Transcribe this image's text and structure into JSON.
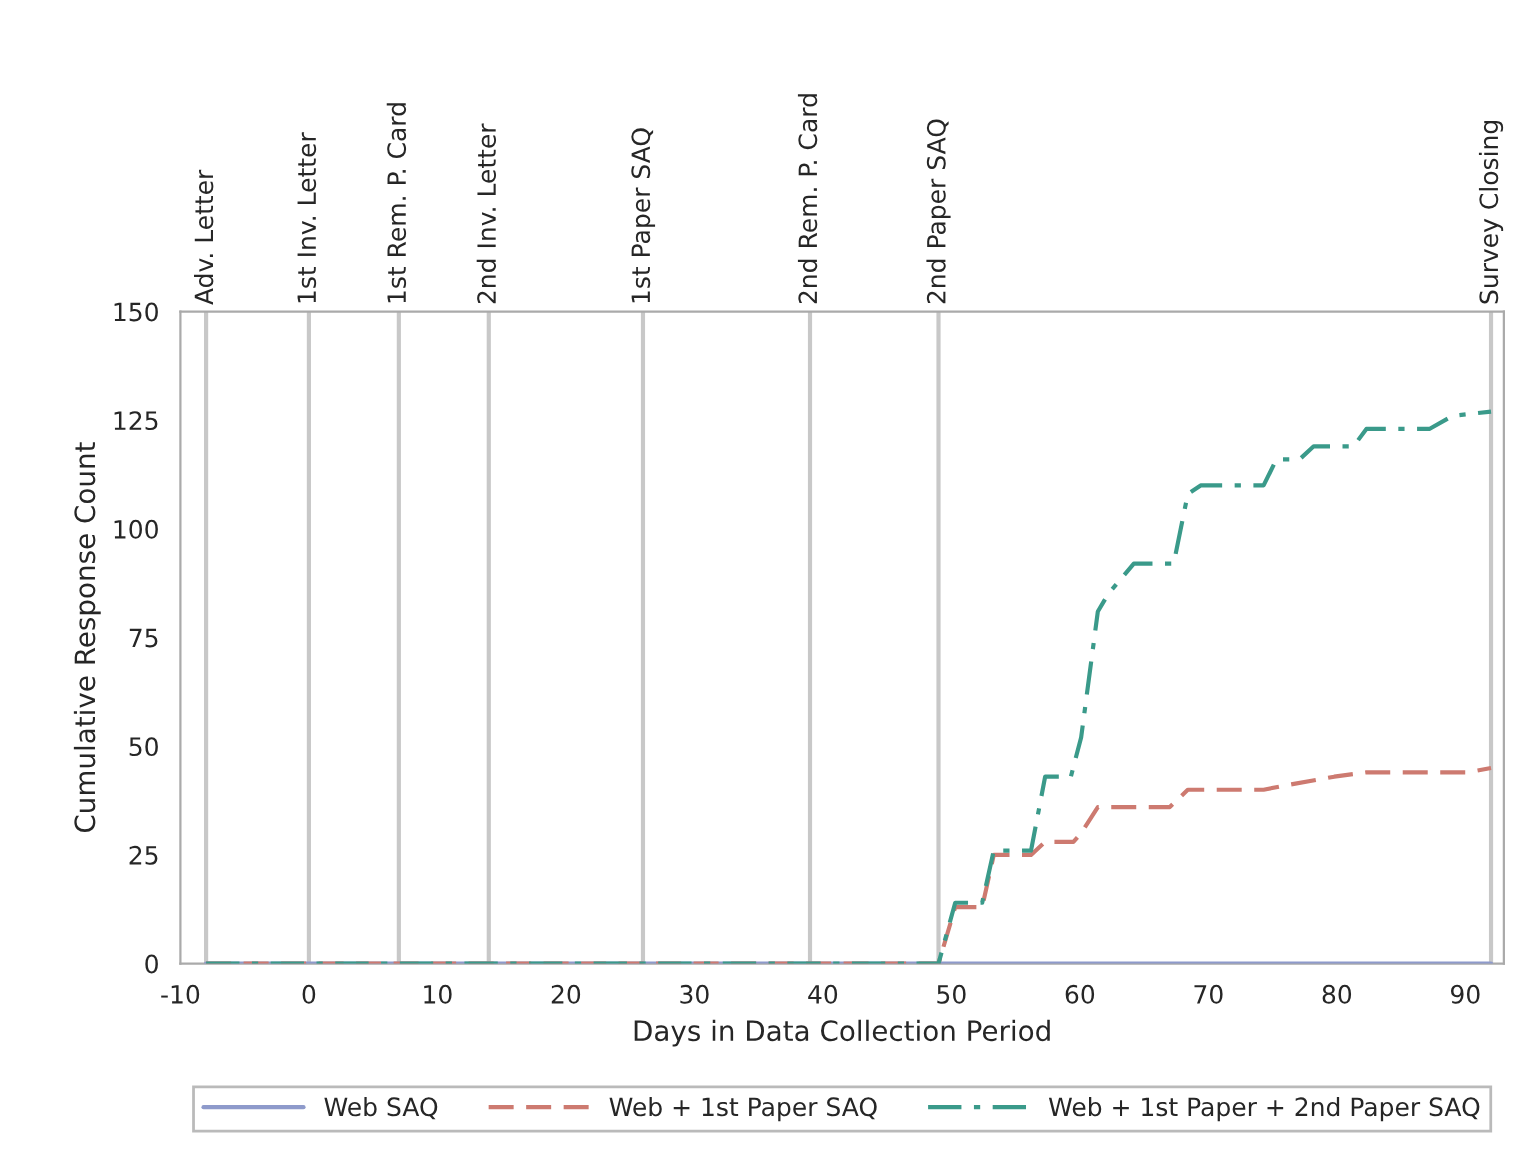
{
  "chart_data": {
    "type": "line",
    "xlabel": "Days in Data Collection Period",
    "ylabel": "Cumulative Response Count",
    "xlim": [
      -10,
      93
    ],
    "xticks": [
      -10,
      0,
      10,
      20,
      30,
      40,
      50,
      60,
      70,
      80,
      90
    ],
    "ylim": [
      0,
      150
    ],
    "yticks": [
      0,
      25,
      50,
      75,
      100,
      125,
      150
    ],
    "grid": false,
    "legend": "bottom",
    "ref_lines": [
      {
        "axis": "x",
        "value": -8,
        "label": "Adv. Letter",
        "color": "#c8c8c8"
      },
      {
        "axis": "x",
        "value": 0,
        "label": "1st Inv. Letter",
        "color": "#c8c8c8"
      },
      {
        "axis": "x",
        "value": 7,
        "label": "1st Rem. P. Card",
        "color": "#c8c8c8"
      },
      {
        "axis": "x",
        "value": 14,
        "label": "2nd Inv. Letter",
        "color": "#c8c8c8"
      },
      {
        "axis": "x",
        "value": 26,
        "label": "1st Paper SAQ",
        "color": "#c8c8c8"
      },
      {
        "axis": "x",
        "value": 39,
        "label": "2nd Rem. P. Card",
        "color": "#c8c8c8"
      },
      {
        "axis": "x",
        "value": 49,
        "label": "2nd Paper SAQ",
        "color": "#c8c8c8"
      },
      {
        "axis": "x",
        "value": 92,
        "label": "Survey Closing",
        "color": "#c8c8c8"
      }
    ],
    "series": [
      {
        "name": "Web SAQ",
        "color": "#8e9acb",
        "line_style": "solid",
        "x": [
          -8,
          92
        ],
        "values": [
          0,
          0
        ]
      },
      {
        "name": "Web + 1st Paper SAQ",
        "color": "#cd7a70",
        "line_style": "dashed",
        "x": [
          -8,
          49,
          50.3,
          52.4,
          53.3,
          56.2,
          57.3,
          59.5,
          60.1,
          61.4,
          67,
          68.4,
          74.3,
          76,
          79.8,
          82.3,
          90.2,
          92
        ],
        "values": [
          0,
          0,
          13,
          13,
          25,
          25,
          28,
          28,
          30,
          36,
          36,
          40,
          40,
          41,
          43,
          44,
          44,
          45
        ]
      },
      {
        "name": "Web + 1st Paper + 2nd Paper SAQ",
        "color": "#3a9a8a",
        "line_style": "dashdot",
        "x": [
          -8,
          49,
          50.3,
          52.4,
          53.3,
          56.2,
          57.3,
          59.3,
          60.1,
          61.4,
          62.2,
          64.2,
          67.3,
          68.4,
          69.4,
          74.3,
          75.3,
          77.1,
          78.2,
          81.3,
          82.3,
          87.2,
          89,
          92
        ],
        "values": [
          0,
          0,
          14,
          14,
          26,
          26,
          43,
          43,
          52,
          81,
          85,
          92,
          92,
          108,
          110,
          110,
          116,
          116,
          119,
          119,
          123,
          123,
          126,
          127
        ]
      }
    ]
  }
}
